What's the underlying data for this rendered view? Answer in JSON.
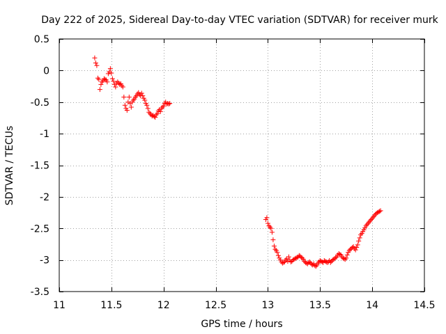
{
  "chart_data": {
    "type": "scatter",
    "title": "Day 222 of 2025, Sidereal Day-to-day VTEC variation (SDTVAR) for receiver murk",
    "xlabel": "GPS time / hours",
    "ylabel": "SDTVAR / TECUs",
    "xlim": [
      11,
      14.5
    ],
    "ylim": [
      -3.5,
      0.5
    ],
    "x_ticks": [
      "11",
      "11.5",
      "12",
      "12.5",
      "13",
      "13.5",
      "14",
      "14.5"
    ],
    "y_ticks": [
      "0.5",
      "0",
      "-0.5",
      "-1",
      "-1.5",
      "-2",
      "-2.5",
      "-3",
      "-3.5"
    ],
    "x_tick_values": [
      11,
      11.5,
      12,
      12.5,
      13,
      13.5,
      14,
      14.5
    ],
    "y_tick_values": [
      0.5,
      0,
      -0.5,
      -1,
      -1.5,
      -2,
      -2.5,
      -3,
      -3.5
    ],
    "grid": true,
    "marker": "+",
    "marker_color": "#ff0000",
    "series": [
      {
        "name": "SDTVAR",
        "points": [
          [
            11.34,
            0.2
          ],
          [
            11.35,
            0.12
          ],
          [
            11.36,
            0.08
          ],
          [
            11.37,
            -0.12
          ],
          [
            11.38,
            -0.14
          ],
          [
            11.39,
            -0.3
          ],
          [
            11.4,
            -0.22
          ],
          [
            11.41,
            -0.18
          ],
          [
            11.42,
            -0.16
          ],
          [
            11.43,
            -0.13
          ],
          [
            11.44,
            -0.14
          ],
          [
            11.45,
            -0.15
          ],
          [
            11.46,
            -0.18
          ],
          [
            11.47,
            -0.05
          ],
          [
            11.48,
            -0.02
          ],
          [
            11.49,
            0.03
          ],
          [
            11.5,
            -0.04
          ],
          [
            11.51,
            -0.13
          ],
          [
            11.52,
            -0.17
          ],
          [
            11.53,
            -0.22
          ],
          [
            11.54,
            -0.26
          ],
          [
            11.55,
            -0.2
          ],
          [
            11.56,
            -0.18
          ],
          [
            11.57,
            -0.2
          ],
          [
            11.58,
            -0.22
          ],
          [
            11.59,
            -0.21
          ],
          [
            11.6,
            -0.24
          ],
          [
            11.61,
            -0.26
          ],
          [
            11.62,
            -0.42
          ],
          [
            11.63,
            -0.55
          ],
          [
            11.64,
            -0.6
          ],
          [
            11.65,
            -0.63
          ],
          [
            11.66,
            -0.5
          ],
          [
            11.67,
            -0.42
          ],
          [
            11.68,
            -0.52
          ],
          [
            11.69,
            -0.58
          ],
          [
            11.7,
            -0.5
          ],
          [
            11.71,
            -0.47
          ],
          [
            11.72,
            -0.45
          ],
          [
            11.73,
            -0.42
          ],
          [
            11.74,
            -0.4
          ],
          [
            11.75,
            -0.37
          ],
          [
            11.76,
            -0.35
          ],
          [
            11.77,
            -0.38
          ],
          [
            11.78,
            -0.4
          ],
          [
            11.79,
            -0.36
          ],
          [
            11.8,
            -0.4
          ],
          [
            11.81,
            -0.44
          ],
          [
            11.82,
            -0.47
          ],
          [
            11.83,
            -0.52
          ],
          [
            11.84,
            -0.55
          ],
          [
            11.85,
            -0.6
          ],
          [
            11.86,
            -0.66
          ],
          [
            11.87,
            -0.68
          ],
          [
            11.88,
            -0.7
          ],
          [
            11.89,
            -0.72
          ],
          [
            11.9,
            -0.71
          ],
          [
            11.91,
            -0.73
          ],
          [
            11.92,
            -0.74
          ],
          [
            11.93,
            -0.7
          ],
          [
            11.94,
            -0.68
          ],
          [
            11.95,
            -0.64
          ],
          [
            11.96,
            -0.62
          ],
          [
            11.97,
            -0.65
          ],
          [
            11.98,
            -0.6
          ],
          [
            11.99,
            -0.58
          ],
          [
            12.0,
            -0.56
          ],
          [
            12.01,
            -0.52
          ],
          [
            12.02,
            -0.5
          ],
          [
            12.03,
            -0.53
          ],
          [
            12.04,
            -0.52
          ],
          [
            12.05,
            -0.53
          ],
          [
            12.06,
            -0.52
          ],
          [
            12.98,
            -2.36
          ],
          [
            12.99,
            -2.33
          ],
          [
            13.0,
            -2.42
          ],
          [
            13.01,
            -2.46
          ],
          [
            13.02,
            -2.48
          ],
          [
            13.03,
            -2.5
          ],
          [
            13.04,
            -2.56
          ],
          [
            13.05,
            -2.68
          ],
          [
            13.06,
            -2.78
          ],
          [
            13.07,
            -2.83
          ],
          [
            13.08,
            -2.85
          ],
          [
            13.09,
            -2.88
          ],
          [
            13.1,
            -2.93
          ],
          [
            13.11,
            -2.97
          ],
          [
            13.12,
            -3.0
          ],
          [
            13.13,
            -3.03
          ],
          [
            13.14,
            -3.05
          ],
          [
            13.15,
            -3.04
          ],
          [
            13.16,
            -3.03
          ],
          [
            13.17,
            -3.0
          ],
          [
            13.18,
            -2.98
          ],
          [
            13.19,
            -3.02
          ],
          [
            13.2,
            -2.95
          ],
          [
            13.21,
            -3.0
          ],
          [
            13.22,
            -3.03
          ],
          [
            13.23,
            -3.02
          ],
          [
            13.24,
            -3.0
          ],
          [
            13.25,
            -2.99
          ],
          [
            13.26,
            -2.98
          ],
          [
            13.27,
            -2.97
          ],
          [
            13.28,
            -2.96
          ],
          [
            13.29,
            -2.95
          ],
          [
            13.3,
            -2.93
          ],
          [
            13.31,
            -2.94
          ],
          [
            13.32,
            -2.96
          ],
          [
            13.33,
            -2.97
          ],
          [
            13.34,
            -2.99
          ],
          [
            13.35,
            -3.02
          ],
          [
            13.36,
            -3.04
          ],
          [
            13.37,
            -3.05
          ],
          [
            13.38,
            -3.06
          ],
          [
            13.39,
            -3.04
          ],
          [
            13.4,
            -3.03
          ],
          [
            13.41,
            -3.05
          ],
          [
            13.42,
            -3.07
          ],
          [
            13.43,
            -3.08
          ],
          [
            13.44,
            -3.06
          ],
          [
            13.45,
            -3.09
          ],
          [
            13.46,
            -3.1
          ],
          [
            13.47,
            -3.08
          ],
          [
            13.48,
            -3.05
          ],
          [
            13.49,
            -3.03
          ],
          [
            13.5,
            -3.01
          ],
          [
            13.51,
            -3.02
          ],
          [
            13.52,
            -3.03
          ],
          [
            13.53,
            -3.04
          ],
          [
            13.54,
            -3.01
          ],
          [
            13.55,
            -3.02
          ],
          [
            13.56,
            -3.03
          ],
          [
            13.57,
            -3.04
          ],
          [
            13.58,
            -3.03
          ],
          [
            13.59,
            -3.01
          ],
          [
            13.6,
            -3.04
          ],
          [
            13.61,
            -3.02
          ],
          [
            13.62,
            -3.0
          ],
          [
            13.63,
            -2.99
          ],
          [
            13.64,
            -2.98
          ],
          [
            13.65,
            -2.96
          ],
          [
            13.66,
            -2.95
          ],
          [
            13.67,
            -2.92
          ],
          [
            13.68,
            -2.9
          ],
          [
            13.69,
            -2.91
          ],
          [
            13.7,
            -2.92
          ],
          [
            13.71,
            -2.95
          ],
          [
            13.72,
            -2.97
          ],
          [
            13.73,
            -2.98
          ],
          [
            13.74,
            -2.99
          ],
          [
            13.75,
            -2.97
          ],
          [
            13.76,
            -2.92
          ],
          [
            13.77,
            -2.88
          ],
          [
            13.78,
            -2.85
          ],
          [
            13.79,
            -2.83
          ],
          [
            13.8,
            -2.82
          ],
          [
            13.81,
            -2.8
          ],
          [
            13.82,
            -2.79
          ],
          [
            13.83,
            -2.82
          ],
          [
            13.84,
            -2.84
          ],
          [
            13.85,
            -2.8
          ],
          [
            13.86,
            -2.76
          ],
          [
            13.87,
            -2.7
          ],
          [
            13.88,
            -2.65
          ],
          [
            13.89,
            -2.6
          ],
          [
            13.9,
            -2.58
          ],
          [
            13.91,
            -2.55
          ],
          [
            13.92,
            -2.52
          ],
          [
            13.93,
            -2.49
          ],
          [
            13.94,
            -2.46
          ],
          [
            13.95,
            -2.44
          ],
          [
            13.96,
            -2.42
          ],
          [
            13.97,
            -2.4
          ],
          [
            13.98,
            -2.38
          ],
          [
            13.99,
            -2.36
          ],
          [
            14.0,
            -2.34
          ],
          [
            14.01,
            -2.32
          ],
          [
            14.02,
            -2.3
          ],
          [
            14.03,
            -2.28
          ],
          [
            14.04,
            -2.26
          ],
          [
            14.05,
            -2.25
          ],
          [
            14.06,
            -2.24
          ],
          [
            14.07,
            -2.23
          ],
          [
            14.08,
            -2.22
          ]
        ]
      }
    ]
  }
}
